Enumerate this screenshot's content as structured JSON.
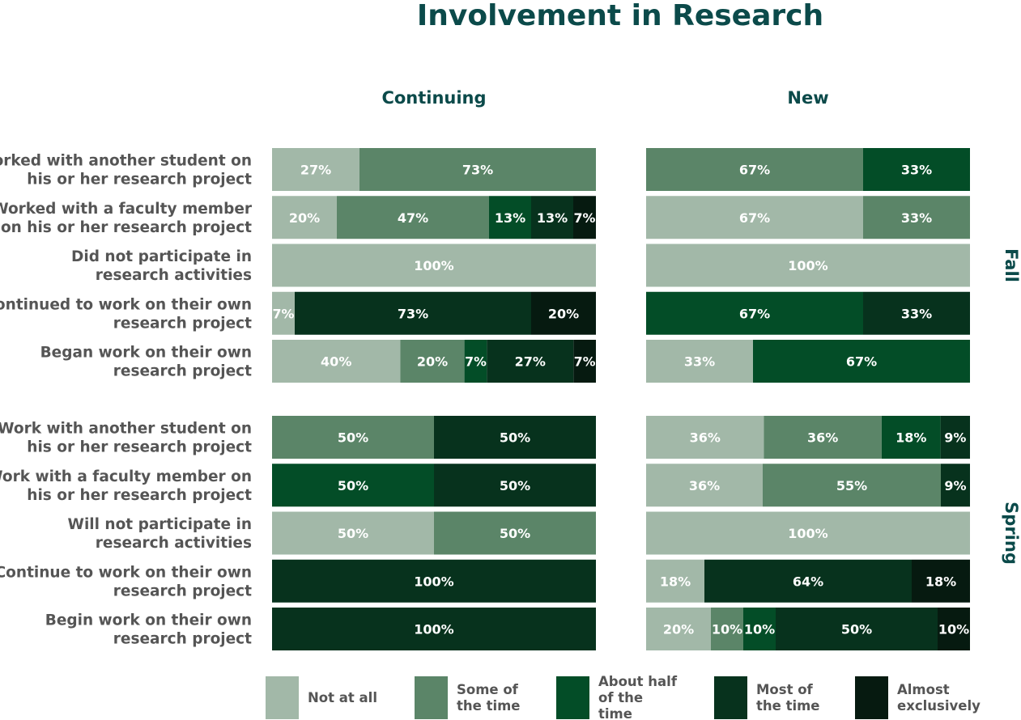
{
  "chart_data": {
    "type": "bar",
    "stacked": true,
    "normalized": true,
    "title": "Involvement in Research",
    "panels": [
      "Continuing",
      "New"
    ],
    "terms": [
      "Fall",
      "Spring"
    ],
    "categories": [
      "Not at all",
      "Some of the time",
      "About half of the time",
      "Most of the time",
      "Almost exclusively"
    ],
    "legend_lines": [
      [
        "Not at all"
      ],
      [
        "Some of",
        "the time"
      ],
      [
        "About half",
        "of the",
        "time"
      ],
      [
        "Most of",
        "the time"
      ],
      [
        "Almost",
        "exclusively"
      ]
    ],
    "colors": [
      "#a2b8a8",
      "#5b8568",
      "#034d27",
      "#07321d",
      "#061a10"
    ],
    "legend": "bottom",
    "groups": [
      {
        "term": "Fall",
        "rows": [
          {
            "label": [
              "Worked with another student on",
              "his or her research project"
            ],
            "continuing": [
              27,
              73,
              0,
              0,
              0
            ],
            "new": [
              0,
              67,
              33,
              0,
              0
            ]
          },
          {
            "label": [
              "Worked with a faculty member",
              "on his or her research project"
            ],
            "continuing": [
              20,
              47,
              13,
              13,
              7
            ],
            "new": [
              67,
              33,
              0,
              0,
              0
            ]
          },
          {
            "label": [
              "Did not participate in",
              "research activities"
            ],
            "continuing": [
              100,
              0,
              0,
              0,
              0
            ],
            "new": [
              100,
              0,
              0,
              0,
              0
            ]
          },
          {
            "label": [
              "Continued to work on their own",
              "research project"
            ],
            "continuing": [
              7,
              0,
              0,
              73,
              20
            ],
            "new": [
              0,
              0,
              67,
              33,
              0
            ]
          },
          {
            "label": [
              "Began work on their own",
              "research project"
            ],
            "continuing": [
              40,
              20,
              7,
              27,
              7
            ],
            "new": [
              33,
              0,
              67,
              0,
              0
            ]
          }
        ]
      },
      {
        "term": "Spring",
        "rows": [
          {
            "label": [
              "Work with another student on",
              "his or her research project"
            ],
            "continuing": [
              0,
              50,
              0,
              50,
              0
            ],
            "new": [
              36,
              36,
              18,
              9,
              0
            ]
          },
          {
            "label": [
              "Work with a faculty member on",
              "his or her research project"
            ],
            "continuing": [
              0,
              0,
              50,
              50,
              0
            ],
            "new": [
              36,
              55,
              0,
              9,
              0
            ]
          },
          {
            "label": [
              "Will not participate in",
              "research activities"
            ],
            "continuing": [
              50,
              50,
              0,
              0,
              0
            ],
            "new": [
              100,
              0,
              0,
              0,
              0
            ]
          },
          {
            "label": [
              "Continue to work on their own",
              "research project"
            ],
            "continuing": [
              0,
              0,
              0,
              100,
              0
            ],
            "new": [
              18,
              0,
              0,
              64,
              18
            ]
          },
          {
            "label": [
              "Begin work on their own",
              "research project"
            ],
            "continuing": [
              0,
              0,
              0,
              100,
              0
            ],
            "new": [
              20,
              10,
              10,
              50,
              10
            ]
          }
        ]
      }
    ]
  }
}
